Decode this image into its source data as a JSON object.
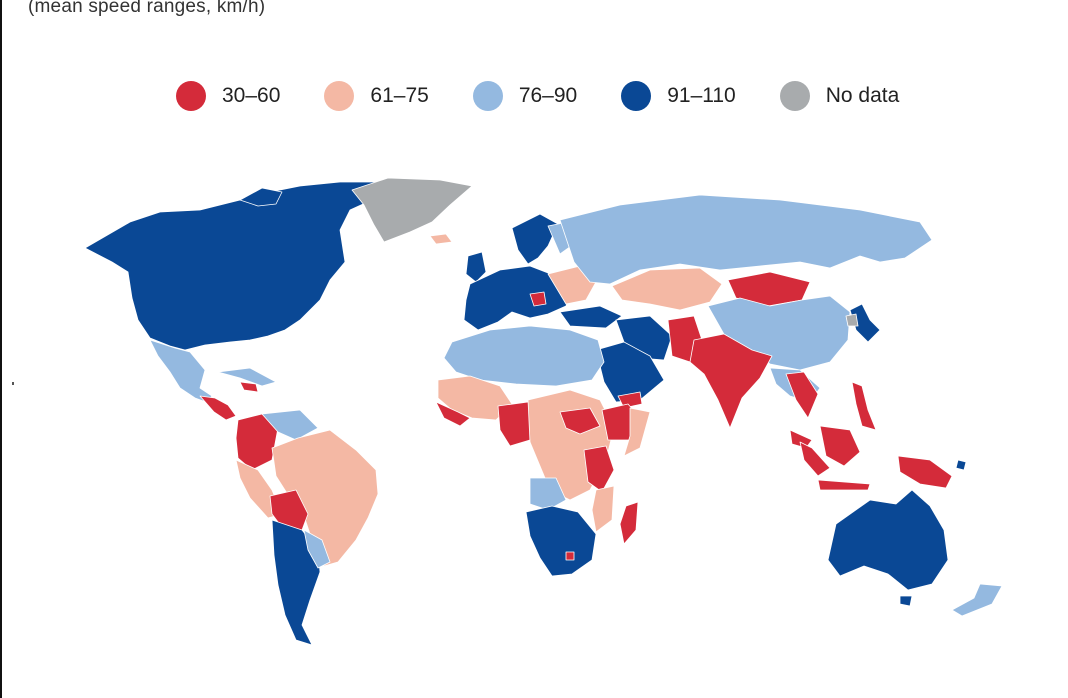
{
  "subtitle": "(mean speed ranges, km/h)",
  "legend": [
    {
      "label": "30–60",
      "color": "#d42b3a"
    },
    {
      "label": "61–75",
      "color": "#f4b8a4"
    },
    {
      "label": "76–90",
      "color": "#94b9e0"
    },
    {
      "label": "91–110",
      "color": "#0a4895"
    },
    {
      "label": "No data",
      "color": "#a8abad"
    }
  ],
  "colors": {
    "r": "#d42b3a",
    "p": "#f4b8a4",
    "l": "#94b9e0",
    "d": "#0a4895",
    "g": "#a8abad"
  }
}
